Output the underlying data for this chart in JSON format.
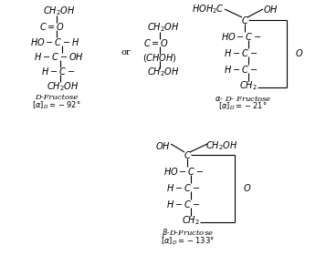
{
  "bg_color": "#ffffff",
  "figsize": [
    3.57,
    3.03
  ],
  "dpi": 100,
  "fs": 7.0,
  "fs_small": 6.0
}
